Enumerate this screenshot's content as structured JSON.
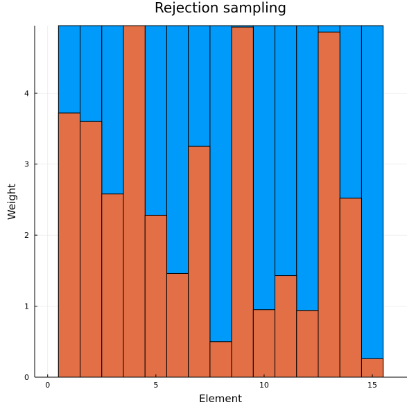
{
  "chart_data": {
    "type": "bar",
    "title": "Rejection sampling",
    "xlabel": "Element",
    "ylabel": "Weight",
    "xlim": [
      -0.6,
      16.6
    ],
    "ylim": [
      0,
      4.95
    ],
    "xticks": [
      0,
      5,
      10,
      15
    ],
    "yticks": [
      0,
      1,
      2,
      3,
      4
    ],
    "grid": true,
    "legend": "none",
    "colors": {
      "background_bar": "#009AFA",
      "foreground_bar": "#E26F46"
    },
    "categories": [
      1,
      2,
      3,
      4,
      5,
      6,
      7,
      8,
      9,
      10,
      11,
      12,
      13,
      14,
      15
    ],
    "series": [
      {
        "values": [
          4.95,
          4.95,
          4.95,
          4.95,
          4.95,
          4.95,
          4.95,
          4.95,
          4.95,
          4.95,
          4.95,
          4.95,
          4.95,
          4.95,
          4.95
        ]
      },
      {
        "values": [
          3.72,
          3.6,
          2.58,
          4.95,
          2.28,
          1.46,
          3.25,
          0.5,
          4.93,
          0.95,
          1.43,
          0.94,
          4.86,
          2.52,
          0.26
        ]
      }
    ]
  }
}
